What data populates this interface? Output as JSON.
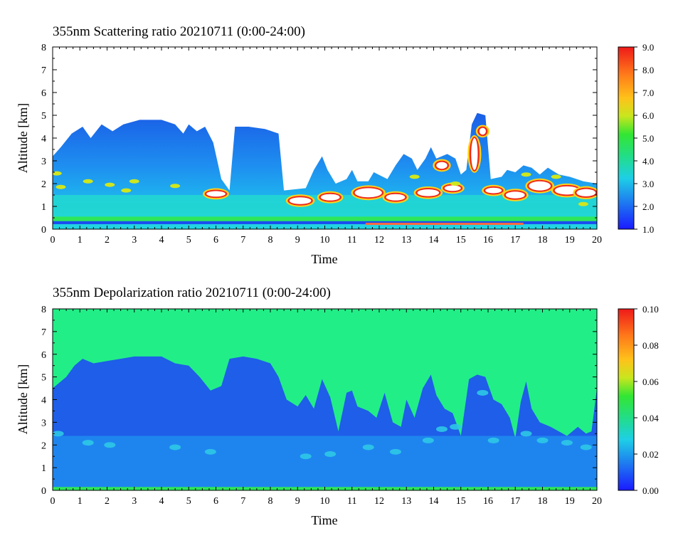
{
  "chart_data": [
    {
      "type": "heatmap",
      "title": "355nm Scattering ratio  20210711 (0:00-24:00)",
      "xlabel": "Time",
      "ylabel": "Altitude [km]",
      "xlim": [
        0,
        20
      ],
      "ylim": [
        0,
        8
      ],
      "xticks": [
        "0",
        "1",
        "2",
        "3",
        "4",
        "5",
        "6",
        "7",
        "8",
        "9",
        "10",
        "11",
        "12",
        "13",
        "14",
        "15",
        "16",
        "17",
        "18",
        "19",
        "20"
      ],
      "yticks": [
        "0",
        "1",
        "2",
        "3",
        "4",
        "5",
        "6",
        "7",
        "8"
      ],
      "colorbar": {
        "range": [
          1.0,
          9.0
        ],
        "ticks": [
          "1.0",
          "2.0",
          "3.0",
          "4.0",
          "5.0",
          "6.0",
          "7.0",
          "8.0",
          "9.0"
        ]
      },
      "background": "#ffffff",
      "cloud_top_km": [
        [
          0,
          3.2
        ],
        [
          0.3,
          3.6
        ],
        [
          0.7,
          4.2
        ],
        [
          1.1,
          4.5
        ],
        [
          1.4,
          4.0
        ],
        [
          1.8,
          4.6
        ],
        [
          2.2,
          4.3
        ],
        [
          2.6,
          4.6
        ],
        [
          3.2,
          4.8
        ],
        [
          4.0,
          4.8
        ],
        [
          4.5,
          4.6
        ],
        [
          4.8,
          4.2
        ],
        [
          5.0,
          4.6
        ],
        [
          5.3,
          4.3
        ],
        [
          5.6,
          4.5
        ],
        [
          5.9,
          3.8
        ],
        [
          6.2,
          2.2
        ],
        [
          6.5,
          1.7
        ],
        [
          6.7,
          4.5
        ],
        [
          7.2,
          4.5
        ],
        [
          7.8,
          4.4
        ],
        [
          8.3,
          4.2
        ],
        [
          8.5,
          1.7
        ],
        [
          9.3,
          1.8
        ],
        [
          9.6,
          2.6
        ],
        [
          9.9,
          3.2
        ],
        [
          10.1,
          2.6
        ],
        [
          10.4,
          2.0
        ],
        [
          10.8,
          2.2
        ],
        [
          11.0,
          2.6
        ],
        [
          11.2,
          2.1
        ],
        [
          11.6,
          2.1
        ],
        [
          11.8,
          2.5
        ],
        [
          12.3,
          2.2
        ],
        [
          12.6,
          2.8
        ],
        [
          12.9,
          3.3
        ],
        [
          13.2,
          3.1
        ],
        [
          13.4,
          2.6
        ],
        [
          13.7,
          3.1
        ],
        [
          13.9,
          3.6
        ],
        [
          14.1,
          3.1
        ],
        [
          14.5,
          3.3
        ],
        [
          14.8,
          3.1
        ],
        [
          15.0,
          2.4
        ],
        [
          15.2,
          2.6
        ],
        [
          15.4,
          4.6
        ],
        [
          15.6,
          5.1
        ],
        [
          15.9,
          5.0
        ],
        [
          16.1,
          2.2
        ],
        [
          16.5,
          2.3
        ],
        [
          16.7,
          2.6
        ],
        [
          17.0,
          2.5
        ],
        [
          17.3,
          2.8
        ],
        [
          17.6,
          2.7
        ],
        [
          17.9,
          2.4
        ],
        [
          18.2,
          2.7
        ],
        [
          18.6,
          2.4
        ],
        [
          19.0,
          2.3
        ],
        [
          19.5,
          2.1
        ],
        [
          20.0,
          2.0
        ]
      ]
    },
    {
      "type": "heatmap",
      "title": "355nm Depolarization ratio  20210711 (0:00-24:00)",
      "xlabel": "Time",
      "ylabel": "Altitude [km]",
      "xlim": [
        0,
        20
      ],
      "ylim": [
        0,
        8
      ],
      "xticks": [
        "0",
        "1",
        "2",
        "3",
        "4",
        "5",
        "6",
        "7",
        "8",
        "9",
        "10",
        "11",
        "12",
        "13",
        "14",
        "15",
        "16",
        "17",
        "18",
        "19",
        "20"
      ],
      "yticks": [
        "0",
        "1",
        "2",
        "3",
        "4",
        "5",
        "6",
        "7",
        "8"
      ],
      "colorbar": {
        "range": [
          0.0,
          0.1
        ],
        "ticks": [
          "0.00",
          "0.02",
          "0.04",
          "0.06",
          "0.08",
          "0.10"
        ]
      },
      "background": "#22ee88",
      "low_depol_top_km": [
        [
          0,
          4.5
        ],
        [
          0.5,
          5.0
        ],
        [
          0.8,
          5.5
        ],
        [
          1.1,
          5.8
        ],
        [
          1.5,
          5.6
        ],
        [
          2.0,
          5.7
        ],
        [
          2.5,
          5.8
        ],
        [
          3.0,
          5.9
        ],
        [
          4.0,
          5.9
        ],
        [
          4.5,
          5.6
        ],
        [
          5.0,
          5.5
        ],
        [
          5.4,
          5.0
        ],
        [
          5.8,
          4.4
        ],
        [
          6.2,
          4.6
        ],
        [
          6.5,
          5.8
        ],
        [
          7.0,
          5.9
        ],
        [
          7.5,
          5.8
        ],
        [
          8.0,
          5.6
        ],
        [
          8.3,
          5.0
        ],
        [
          8.6,
          4.0
        ],
        [
          9.0,
          3.7
        ],
        [
          9.3,
          4.2
        ],
        [
          9.6,
          3.6
        ],
        [
          9.9,
          4.9
        ],
        [
          10.2,
          4.1
        ],
        [
          10.5,
          2.6
        ],
        [
          10.8,
          4.3
        ],
        [
          11.0,
          4.4
        ],
        [
          11.2,
          3.7
        ],
        [
          11.6,
          3.5
        ],
        [
          11.9,
          3.2
        ],
        [
          12.2,
          4.3
        ],
        [
          12.5,
          3.0
        ],
        [
          12.8,
          2.8
        ],
        [
          13.0,
          4.0
        ],
        [
          13.3,
          3.2
        ],
        [
          13.6,
          4.5
        ],
        [
          13.9,
          5.1
        ],
        [
          14.1,
          4.2
        ],
        [
          14.4,
          3.6
        ],
        [
          14.7,
          3.4
        ],
        [
          15.0,
          2.4
        ],
        [
          15.3,
          4.9
        ],
        [
          15.6,
          5.1
        ],
        [
          15.9,
          5.0
        ],
        [
          16.2,
          4.0
        ],
        [
          16.5,
          3.8
        ],
        [
          16.8,
          3.2
        ],
        [
          17.0,
          2.3
        ],
        [
          17.2,
          3.9
        ],
        [
          17.4,
          4.8
        ],
        [
          17.6,
          3.6
        ],
        [
          17.9,
          3.0
        ],
        [
          18.3,
          2.8
        ],
        [
          18.6,
          2.6
        ],
        [
          18.9,
          2.4
        ],
        [
          19.3,
          2.8
        ],
        [
          19.6,
          2.5
        ],
        [
          19.8,
          2.6
        ],
        [
          20.0,
          4.5
        ]
      ]
    }
  ]
}
